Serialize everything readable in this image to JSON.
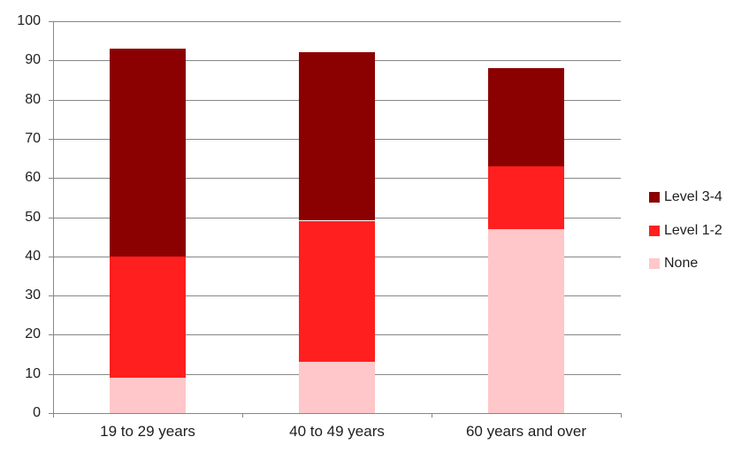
{
  "chart_data": {
    "type": "bar",
    "stacked": true,
    "title": "",
    "xlabel": "",
    "ylabel": "",
    "categories": [
      "19 to 29 years",
      "40 to 49 years",
      "60 years and over"
    ],
    "series": [
      {
        "name": "None",
        "color": "#FFC7C9",
        "values": [
          9,
          13,
          47
        ]
      },
      {
        "name": "Level 1-2",
        "color": "#FF1F1F",
        "values": [
          31,
          36,
          16
        ]
      },
      {
        "name": "Level 3-4",
        "color": "#8B0000",
        "values": [
          53,
          43,
          25
        ]
      }
    ],
    "stack_totals": [
      93,
      92,
      88
    ],
    "ylim": [
      0,
      100
    ],
    "ytick_step": 10,
    "ytick_labels": [
      "0",
      "10",
      "20",
      "30",
      "40",
      "50",
      "60",
      "70",
      "80",
      "90",
      "100"
    ],
    "grid": "horizontal",
    "legend": {
      "position": "right",
      "entries": [
        "Level 3-4",
        "Level 1-2",
        "None"
      ]
    }
  },
  "styles": {
    "background": "#FFFFFF",
    "grid_color": "#878787",
    "axis_color": "#878787",
    "text_color": "#1F1F1F",
    "series_colors": {
      "Level 3-4": "#8B0000",
      "Level 1-2": "#FF1F1F",
      "None": "#FFC7C9"
    }
  }
}
